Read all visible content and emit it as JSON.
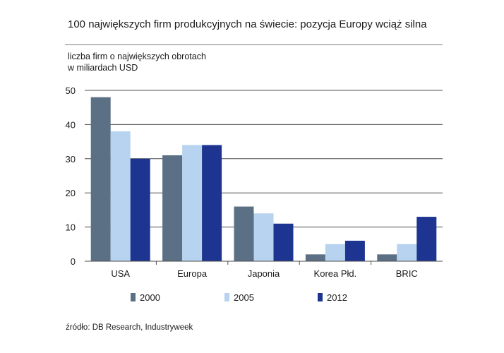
{
  "chart_data": {
    "type": "bar",
    "title": "100 największych firm produkcyjnych na świecie: pozycja Europy wciąż silna",
    "ylabel": "liczba firm o największych obrotach\nw miliardach USD",
    "xlabel": "",
    "categories": [
      "USA",
      "Europa",
      "Japonia",
      "Korea Płd.",
      "BRIC"
    ],
    "series": [
      {
        "name": "2000",
        "color": "#5b7085",
        "values": [
          48,
          31,
          16,
          2,
          2
        ]
      },
      {
        "name": "2005",
        "color": "#b7d3ef",
        "values": [
          38,
          34,
          14,
          5,
          5
        ]
      },
      {
        "name": "2012",
        "color": "#1d3590",
        "values": [
          30,
          34,
          11,
          6,
          13
        ]
      }
    ],
    "ylim": [
      0,
      50
    ],
    "yticks": [
      0,
      10,
      20,
      30,
      40,
      50
    ],
    "grid": true,
    "legend_position": "bottom",
    "source": "źródło: DB Research, Industryweek"
  }
}
